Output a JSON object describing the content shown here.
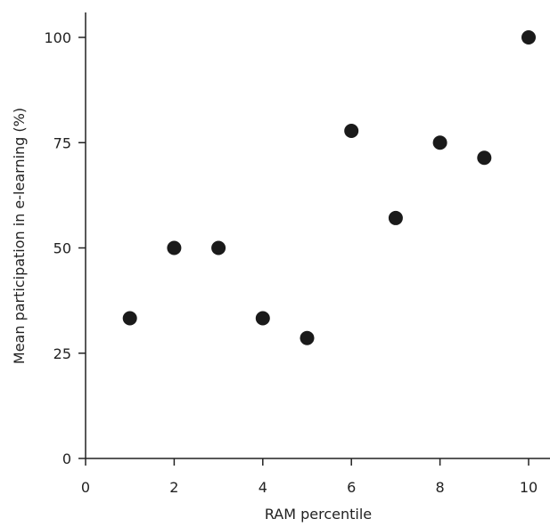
{
  "chart_data": {
    "type": "scatter",
    "title": "",
    "xlabel": "RAM percentile",
    "ylabel": "Mean participation in e-learning (%)",
    "xlim": [
      0,
      10.5
    ],
    "ylim": [
      0,
      100
    ],
    "xticks": [
      0,
      2,
      4,
      6,
      8,
      10
    ],
    "yticks": [
      0,
      25,
      50,
      75,
      100
    ],
    "grid": false,
    "legend": "none",
    "marker_color": "#1a1a1a",
    "series": [
      {
        "points": [
          {
            "x": 1,
            "y": 33.3
          },
          {
            "x": 2,
            "y": 50
          },
          {
            "x": 3,
            "y": 50
          },
          {
            "x": 4,
            "y": 33.3
          },
          {
            "x": 5,
            "y": 28.6
          },
          {
            "x": 6,
            "y": 77.8
          },
          {
            "x": 7,
            "y": 57.1
          },
          {
            "x": 8,
            "y": 75
          },
          {
            "x": 9,
            "y": 71.4
          },
          {
            "x": 10,
            "y": 100
          }
        ]
      }
    ]
  }
}
